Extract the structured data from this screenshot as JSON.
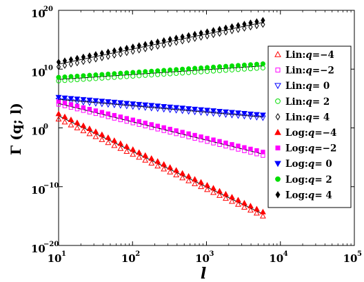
{
  "chart_data": {
    "type": "scatter",
    "xscale": "log",
    "yscale": "log",
    "xlim": [
      10,
      100000
    ],
    "ylim": [
      1e-20,
      1e+20
    ],
    "xlabel": "l",
    "ylabel": "Γ (q; l)",
    "legend_position": "right",
    "x_ticks": [
      {
        "value": 10,
        "base": "10",
        "exp": "1"
      },
      {
        "value": 100,
        "base": "10",
        "exp": "2"
      },
      {
        "value": 1000,
        "base": "10",
        "exp": "3"
      },
      {
        "value": 10000,
        "base": "10",
        "exp": "4"
      },
      {
        "value": 100000,
        "base": "10",
        "exp": "5"
      }
    ],
    "y_ticks": [
      {
        "value": 1e-20,
        "base": "10",
        "exp": "−20"
      },
      {
        "value": 1e-10,
        "base": "10",
        "exp": "−10"
      },
      {
        "value": 1,
        "base": "10",
        "exp": "0"
      },
      {
        "value": 10000000000.0,
        "base": "10",
        "exp": "10"
      },
      {
        "value": 1e+20,
        "base": "10",
        "exp": "20"
      }
    ],
    "series": [
      {
        "name": "Lin:q=−4",
        "color": "#ff0000",
        "marker": "triangle-up",
        "filled": false,
        "y_start": 1.5,
        "y_end": -15.0
      },
      {
        "name": "Lin:q=−2",
        "color": "#ff00ff",
        "marker": "square",
        "filled": false,
        "y_start": 4.0,
        "y_end": -4.7
      },
      {
        "name": "Lin:q= 0",
        "color": "#0000ff",
        "marker": "triangle-down",
        "filled": false,
        "y_start": 4.7,
        "y_end": 1.7
      },
      {
        "name": "Lin:q= 2",
        "color": "#00dd00",
        "marker": "circle",
        "filled": false,
        "y_start": 8.0,
        "y_end": 10.2
      },
      {
        "name": "Lin:q= 4",
        "color": "#000000",
        "marker": "diamond",
        "filled": false,
        "y_start": 10.4,
        "y_end": 17.6
      },
      {
        "name": "Log:q=−4",
        "color": "#ff0000",
        "marker": "triangle-up",
        "filled": true,
        "y_start": 2.4,
        "y_end": -14.3
      },
      {
        "name": "Log:q=−2",
        "color": "#ff00ff",
        "marker": "square",
        "filled": true,
        "y_start": 4.5,
        "y_end": -4.1
      },
      {
        "name": "Log:q= 0",
        "color": "#0000ff",
        "marker": "triangle-down",
        "filled": true,
        "y_start": 5.2,
        "y_end": 2.2
      },
      {
        "name": "Log:q= 2",
        "color": "#00dd00",
        "marker": "circle",
        "filled": true,
        "y_start": 8.6,
        "y_end": 10.9
      },
      {
        "name": "Log:q= 4",
        "color": "#000000",
        "marker": "diamond",
        "filled": true,
        "y_start": 11.2,
        "y_end": 18.3
      }
    ],
    "x_range": [
      10,
      5800
    ]
  }
}
